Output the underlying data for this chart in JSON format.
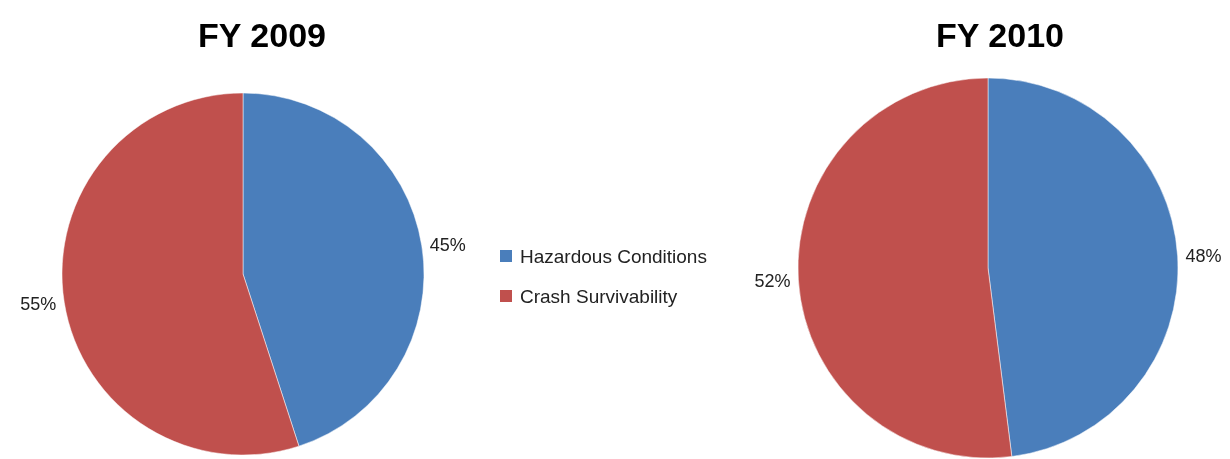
{
  "chart_data": [
    {
      "type": "pie",
      "title": "FY 2009",
      "categories": [
        "Hazardous Conditions",
        "Crash Survivability"
      ],
      "values": [
        45,
        55
      ],
      "value_labels": [
        "45%",
        "55%"
      ],
      "colors": [
        "#4a7ebb",
        "#c0504d"
      ],
      "legend": "right"
    },
    {
      "type": "pie",
      "title": "FY 2010",
      "categories": [
        null,
        null
      ],
      "values": [
        48,
        52
      ],
      "value_labels": [
        "48%",
        "52%"
      ],
      "colors": [
        "#4a7ebb",
        "#c0504d"
      ]
    }
  ]
}
